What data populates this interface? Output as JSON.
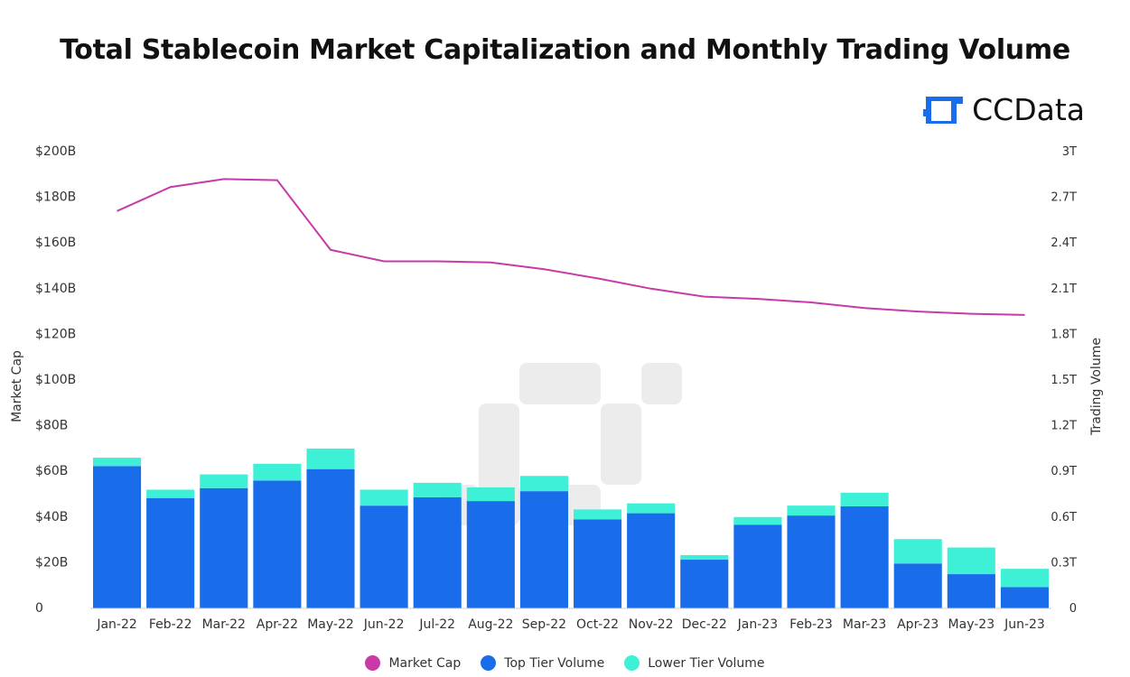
{
  "title": "Total Stablecoin Market Capitalization and Monthly Trading Volume",
  "brand": {
    "name": "CCData",
    "icon": "ccdata-logo-icon",
    "color": "#1a6dea"
  },
  "colors": {
    "market_cap": "#c83aa8",
    "top_tier": "#1a6dea",
    "lower_tier": "#3ef0d6"
  },
  "chart_data": {
    "type": "bar",
    "stacked": true,
    "categories": [
      "Jan-22",
      "Feb-22",
      "Mar-22",
      "Apr-22",
      "May-22",
      "Jun-22",
      "Jul-22",
      "Aug-22",
      "Sep-22",
      "Oct-22",
      "Nov-22",
      "Dec-22",
      "Jan-23",
      "Feb-23",
      "Mar-23",
      "Apr-23",
      "May-23",
      "Jun-23"
    ],
    "series": [
      {
        "name": "Market Cap",
        "type": "line",
        "axis": "left",
        "values": [
          174,
          184.5,
          188,
          187.5,
          157,
          152,
          152,
          151.5,
          148.5,
          144.5,
          140,
          136.5,
          135.5,
          134,
          131.5,
          130,
          129,
          128.5
        ]
      },
      {
        "name": "Top Tier Volume",
        "type": "bar",
        "axis": "right",
        "values": [
          0.935,
          0.725,
          0.79,
          0.84,
          0.915,
          0.675,
          0.73,
          0.705,
          0.77,
          0.585,
          0.625,
          0.32,
          0.55,
          0.61,
          0.67,
          0.295,
          0.225,
          0.14
        ]
      },
      {
        "name": "Lower Tier Volume",
        "type": "bar",
        "axis": "right",
        "values": [
          0.055,
          0.055,
          0.09,
          0.11,
          0.135,
          0.105,
          0.095,
          0.09,
          0.1,
          0.065,
          0.065,
          0.03,
          0.05,
          0.065,
          0.09,
          0.16,
          0.175,
          0.12
        ]
      }
    ],
    "ylabel_left": "Market Cap",
    "ylabel_right": "Trading Volume",
    "ylim_left": [
      0,
      200
    ],
    "ylim_right": [
      0,
      3
    ],
    "yticks_left": [
      "0",
      "$20B",
      "$40B",
      "$60B",
      "$80B",
      "$100B",
      "$120B",
      "$140B",
      "$160B",
      "$180B",
      "$200B"
    ],
    "yticks_right": [
      "0",
      "0.3T",
      "0.6T",
      "0.9T",
      "1.2T",
      "1.5T",
      "1.8T",
      "2.1T",
      "2.4T",
      "2.7T",
      "3T"
    ],
    "grid": false,
    "legend_position": "bottom"
  },
  "legend": [
    {
      "label": "Market Cap",
      "color": "#c83aa8"
    },
    {
      "label": "Top Tier Volume",
      "color": "#1a6dea"
    },
    {
      "label": "Lower Tier Volume",
      "color": "#3ef0d6"
    }
  ]
}
